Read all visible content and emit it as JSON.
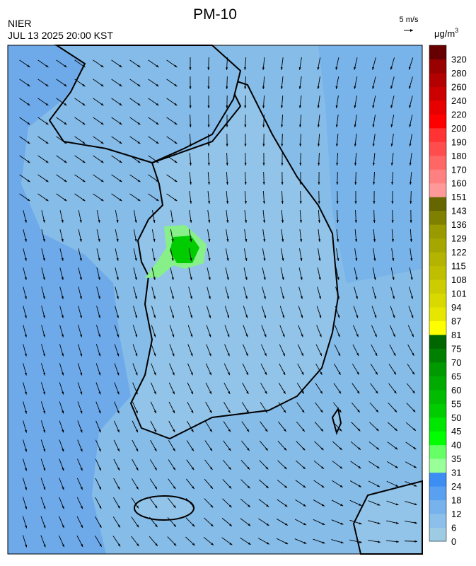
{
  "header": {
    "title": "PM-10",
    "agency": "NIER",
    "datetime": "JUL 13 2025 20:00 KST",
    "wind_scale": "5 m/s"
  },
  "legend": {
    "unit": "μg/m",
    "unit_power": "3",
    "ticks": [
      0,
      6,
      12,
      18,
      24,
      31,
      35,
      40,
      45,
      50,
      55,
      60,
      65,
      70,
      75,
      81,
      87,
      94,
      101,
      108,
      115,
      122,
      129,
      136,
      143,
      151,
      160,
      170,
      180,
      190,
      200,
      220,
      240,
      260,
      280,
      320
    ],
    "colors": [
      "#9dcbe3",
      "#8cc0ea",
      "#78b2ec",
      "#5aa0f0",
      "#3c8ef2",
      "#99ff99",
      "#66ff66",
      "#00ff00",
      "#00e600",
      "#00cc00",
      "#00bb00",
      "#00aa00",
      "#009900",
      "#008000",
      "#006600",
      "#ffff00",
      "#e6e600",
      "#d9d900",
      "#cccc00",
      "#bfbf00",
      "#b3b300",
      "#a6a600",
      "#999900",
      "#808000",
      "#666600",
      "#ff9999",
      "#ff8080",
      "#ff6666",
      "#ff4d4d",
      "#ff3333",
      "#ff0000",
      "#e60000",
      "#cc0000",
      "#b30000",
      "#990000",
      "#660000"
    ]
  }
}
